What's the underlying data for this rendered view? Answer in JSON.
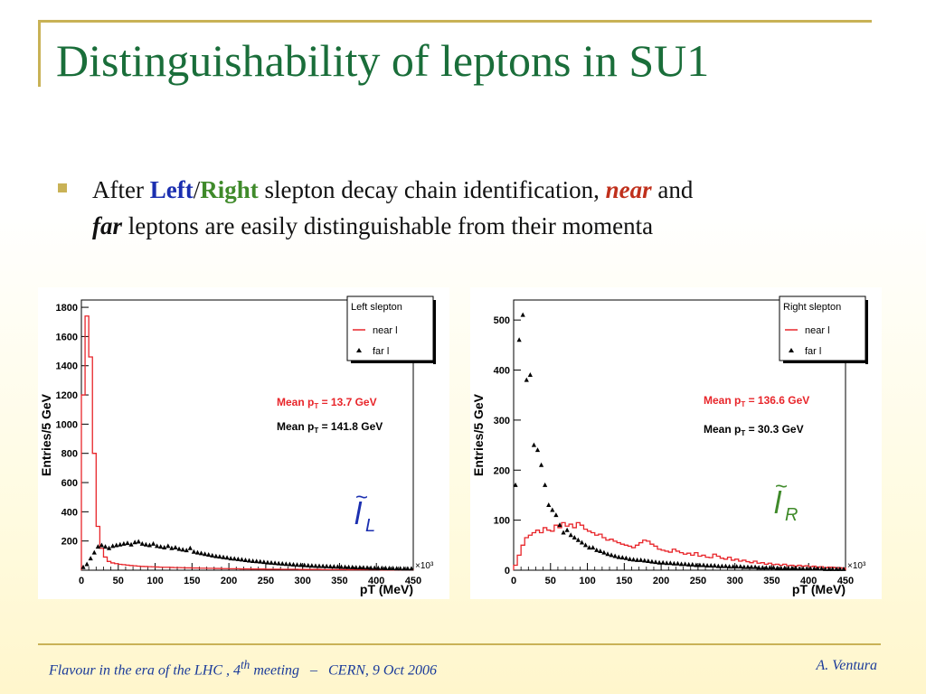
{
  "slide": {
    "title": "Distinguishability of leptons in SU1",
    "bullet": {
      "after": "After",
      "left": "Left",
      "slash": "/",
      "right": "Right",
      "mid": "slepton decay chain identification,",
      "near": "near",
      "and": "and",
      "far": "far",
      "end": "leptons are easily distinguishable from their momenta"
    },
    "footer": {
      "left_a": "Flavour in the era of the LHC , 4",
      "left_sup": "th",
      "left_b": " meeting   –   CERN, 9 Oct 2006",
      "right": "A. Ventura"
    }
  },
  "colors": {
    "title": "#1a6e3a",
    "left": "#1b2fb0",
    "right": "#3f8a2a",
    "near": "#c0301c",
    "accent": "#c9b256",
    "near_series": "#e8252a",
    "far_series": "#000000"
  },
  "chart_data": [
    {
      "type": "line",
      "panel": "left",
      "ylabel": "Entries/5 GeV",
      "xlabel": "pT (MeV)",
      "x_exponent": "×10³",
      "xlim": [
        0,
        450
      ],
      "ylim": [
        0,
        1850
      ],
      "xticks": [
        0,
        50,
        100,
        150,
        200,
        250,
        300,
        350,
        400,
        450
      ],
      "yticks": [
        200,
        400,
        600,
        800,
        1000,
        1200,
        1400,
        1600,
        1800
      ],
      "legend_title": "Left slepton",
      "legend_placement": "top-right",
      "mean_near": {
        "label": "Mean p",
        "sub": "T",
        "value": " =  13.7 GeV"
      },
      "mean_far": {
        "label": "Mean p",
        "sub": "T",
        "value": " = 141.8 GeV"
      },
      "glyph": {
        "symbol": "l",
        "tilde": "~",
        "sub": "L"
      },
      "series": [
        {
          "name": "near l",
          "style": "histogram",
          "x": [
            0,
            5,
            10,
            15,
            20,
            25,
            30,
            35,
            40,
            45,
            50,
            55,
            60,
            65,
            70,
            75,
            80,
            85,
            90,
            95,
            100,
            105,
            110,
            115,
            120,
            125,
            130,
            135,
            140,
            145,
            150,
            155,
            160,
            165,
            170,
            175,
            180,
            185,
            190,
            195,
            200,
            205,
            210,
            215,
            220,
            225,
            230,
            235,
            240,
            245,
            250,
            255,
            260,
            265,
            270,
            275,
            280,
            285,
            290,
            295,
            300,
            305,
            310,
            315,
            320,
            325,
            330,
            335,
            340,
            345,
            350,
            355,
            360,
            365,
            370,
            375,
            380,
            385,
            390,
            395,
            400,
            405,
            410,
            415,
            420,
            425,
            430,
            435,
            440,
            445
          ],
          "values": [
            1200,
            1740,
            1460,
            800,
            300,
            150,
            90,
            60,
            50,
            45,
            40,
            38,
            35,
            32,
            30,
            28,
            26,
            25,
            24,
            23,
            22,
            21,
            20,
            20,
            19,
            18,
            18,
            17,
            16,
            16,
            15,
            15,
            14,
            14,
            13,
            13,
            12,
            12,
            11,
            11,
            10,
            10,
            10,
            9,
            9,
            9,
            8,
            8,
            8,
            8,
            7,
            7,
            7,
            7,
            6,
            6,
            6,
            6,
            6,
            5,
            5,
            5,
            5,
            5,
            5,
            4,
            4,
            4,
            4,
            4,
            4,
            4,
            3,
            3,
            3,
            3,
            3,
            3,
            3,
            3,
            3,
            2,
            2,
            2,
            2,
            2,
            2,
            2,
            2,
            2
          ]
        },
        {
          "name": "far l",
          "style": "markers",
          "x": [
            2.5,
            7.5,
            12.5,
            17.5,
            22.5,
            27.5,
            32.5,
            37.5,
            42.5,
            47.5,
            52.5,
            57.5,
            62.5,
            67.5,
            72.5,
            77.5,
            82.5,
            87.5,
            92.5,
            97.5,
            102.5,
            107.5,
            112.5,
            117.5,
            122.5,
            127.5,
            132.5,
            137.5,
            142.5,
            147.5,
            152.5,
            157.5,
            162.5,
            167.5,
            172.5,
            177.5,
            182.5,
            187.5,
            192.5,
            197.5,
            202.5,
            207.5,
            212.5,
            217.5,
            222.5,
            227.5,
            232.5,
            237.5,
            242.5,
            247.5,
            252.5,
            257.5,
            262.5,
            267.5,
            272.5,
            277.5,
            282.5,
            287.5,
            292.5,
            297.5,
            302.5,
            307.5,
            312.5,
            317.5,
            322.5,
            327.5,
            332.5,
            337.5,
            342.5,
            347.5,
            352.5,
            357.5,
            362.5,
            367.5,
            372.5,
            377.5,
            382.5,
            387.5,
            392.5,
            397.5,
            402.5,
            407.5,
            412.5,
            417.5,
            422.5,
            427.5,
            432.5,
            437.5,
            442.5,
            447.5
          ],
          "values": [
            20,
            40,
            80,
            120,
            160,
            170,
            160,
            150,
            165,
            170,
            175,
            180,
            185,
            175,
            190,
            195,
            180,
            175,
            170,
            180,
            165,
            160,
            155,
            165,
            150,
            155,
            145,
            140,
            135,
            150,
            125,
            120,
            115,
            110,
            105,
            100,
            95,
            92,
            88,
            85,
            80,
            78,
            75,
            72,
            68,
            65,
            62,
            60,
            58,
            55,
            52,
            50,
            48,
            46,
            44,
            42,
            40,
            38,
            36,
            35,
            33,
            32,
            30,
            29,
            28,
            27,
            26,
            25,
            24,
            23,
            22,
            21,
            20,
            19,
            18,
            18,
            17,
            16,
            15,
            15,
            14,
            14,
            13,
            12,
            12,
            11,
            11,
            10,
            10,
            10
          ]
        }
      ]
    },
    {
      "type": "line",
      "panel": "right",
      "ylabel": "Entries/5 GeV",
      "xlabel": "pT (MeV)",
      "x_exponent": "×10³",
      "xlim": [
        0,
        450
      ],
      "ylim": [
        0,
        540
      ],
      "xticks": [
        0,
        50,
        100,
        150,
        200,
        250,
        300,
        350,
        400,
        450
      ],
      "yticks": [
        0,
        100,
        200,
        300,
        400,
        500
      ],
      "legend_title": "Right slepton",
      "legend_placement": "top-right",
      "mean_near": {
        "label": "Mean p",
        "sub": "T",
        "value": " = 136.6 GeV"
      },
      "mean_far": {
        "label": "Mean p",
        "sub": "T",
        "value": " =  30.3 GeV"
      },
      "glyph": {
        "symbol": "l",
        "tilde": "~",
        "sub": "R"
      },
      "series": [
        {
          "name": "near l",
          "style": "histogram",
          "x": [
            0,
            5,
            10,
            15,
            20,
            25,
            30,
            35,
            40,
            45,
            50,
            55,
            60,
            65,
            70,
            75,
            80,
            85,
            90,
            95,
            100,
            105,
            110,
            115,
            120,
            125,
            130,
            135,
            140,
            145,
            150,
            155,
            160,
            165,
            170,
            175,
            180,
            185,
            190,
            195,
            200,
            205,
            210,
            215,
            220,
            225,
            230,
            235,
            240,
            245,
            250,
            255,
            260,
            265,
            270,
            275,
            280,
            285,
            290,
            295,
            300,
            305,
            310,
            315,
            320,
            325,
            330,
            335,
            340,
            345,
            350,
            355,
            360,
            365,
            370,
            375,
            380,
            385,
            390,
            395,
            400,
            405,
            410,
            415,
            420,
            425,
            430,
            435,
            440,
            445
          ],
          "values": [
            10,
            30,
            50,
            65,
            70,
            75,
            80,
            75,
            85,
            80,
            78,
            90,
            85,
            95,
            88,
            92,
            85,
            95,
            90,
            82,
            78,
            75,
            70,
            72,
            65,
            60,
            62,
            58,
            55,
            52,
            50,
            48,
            45,
            50,
            55,
            60,
            58,
            52,
            48,
            42,
            40,
            38,
            36,
            42,
            38,
            35,
            32,
            34,
            30,
            35,
            28,
            30,
            26,
            25,
            32,
            28,
            24,
            22,
            26,
            20,
            22,
            18,
            20,
            17,
            15,
            18,
            14,
            15,
            12,
            14,
            11,
            12,
            10,
            12,
            9,
            10,
            8,
            10,
            8,
            9,
            7,
            8,
            6,
            7,
            5,
            6,
            6,
            5,
            5,
            4
          ]
        },
        {
          "name": "far l",
          "style": "markers",
          "x": [
            2.5,
            7.5,
            12.5,
            17.5,
            22.5,
            27.5,
            32.5,
            37.5,
            42.5,
            47.5,
            52.5,
            57.5,
            62.5,
            67.5,
            72.5,
            77.5,
            82.5,
            87.5,
            92.5,
            97.5,
            102.5,
            107.5,
            112.5,
            117.5,
            122.5,
            127.5,
            132.5,
            137.5,
            142.5,
            147.5,
            152.5,
            157.5,
            162.5,
            167.5,
            172.5,
            177.5,
            182.5,
            187.5,
            192.5,
            197.5,
            202.5,
            207.5,
            212.5,
            217.5,
            222.5,
            227.5,
            232.5,
            237.5,
            242.5,
            247.5,
            252.5,
            257.5,
            262.5,
            267.5,
            272.5,
            277.5,
            282.5,
            287.5,
            292.5,
            297.5,
            302.5,
            307.5,
            312.5,
            317.5,
            322.5,
            327.5,
            332.5,
            337.5,
            342.5,
            347.5,
            352.5,
            357.5,
            362.5,
            367.5,
            372.5,
            377.5,
            382.5,
            387.5,
            392.5,
            397.5,
            402.5,
            407.5,
            412.5,
            417.5,
            422.5,
            427.5,
            432.5,
            437.5,
            442.5,
            447.5
          ],
          "values": [
            170,
            460,
            510,
            380,
            390,
            250,
            240,
            210,
            170,
            130,
            120,
            110,
            90,
            75,
            80,
            70,
            65,
            60,
            55,
            50,
            45,
            45,
            40,
            38,
            35,
            32,
            30,
            28,
            26,
            25,
            24,
            22,
            21,
            20,
            20,
            19,
            18,
            17,
            16,
            15,
            15,
            14,
            14,
            13,
            13,
            12,
            12,
            11,
            11,
            10,
            10,
            10,
            9,
            9,
            9,
            8,
            8,
            8,
            7,
            7,
            7,
            7,
            6,
            6,
            6,
            6,
            5,
            5,
            5,
            5,
            5,
            4,
            4,
            4,
            4,
            4,
            4,
            3,
            3,
            3,
            3,
            3,
            3,
            3,
            2,
            2,
            2,
            2,
            2,
            2
          ]
        }
      ]
    }
  ]
}
